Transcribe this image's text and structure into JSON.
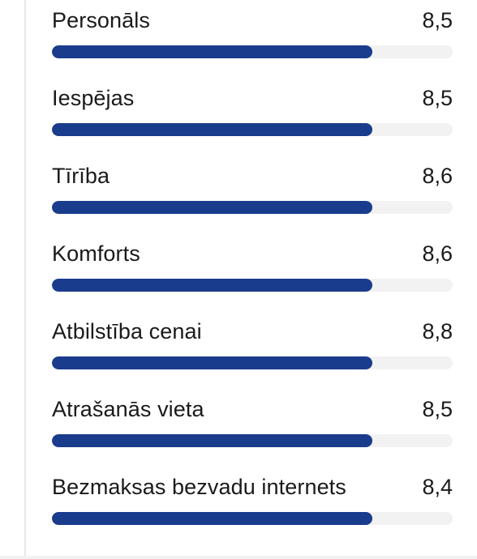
{
  "ratings": [
    {
      "label": "Personāls",
      "score": "8,5",
      "fraction": 0.8
    },
    {
      "label": "Iespējas",
      "score": "8,5",
      "fraction": 0.8
    },
    {
      "label": "Tīrība",
      "score": "8,6",
      "fraction": 0.8
    },
    {
      "label": "Komforts",
      "score": "8,6",
      "fraction": 0.8
    },
    {
      "label": "Atbilstība cenai",
      "score": "8,8",
      "fraction": 0.8
    },
    {
      "label": "Atrašanās vieta",
      "score": "8,5",
      "fraction": 0.8
    },
    {
      "label": "Bezmaksas bezvadu internets",
      "score": "8,4",
      "fraction": 0.8
    }
  ],
  "colors": {
    "bar_fill": "#1a3c8c",
    "bar_track": "#f2f2f2",
    "text": "#1a1a1a"
  }
}
